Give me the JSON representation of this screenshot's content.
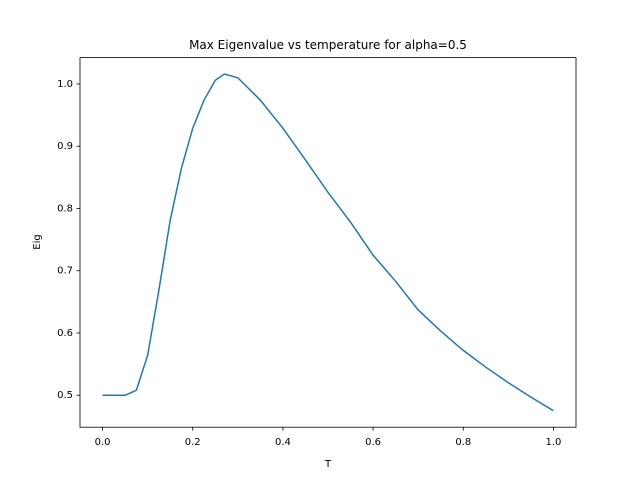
{
  "chart_data": {
    "type": "line",
    "title": "Max Eigenvalue vs temperature for alpha=0.5",
    "x_label": "T",
    "y_label": "Eig",
    "x": [
      0,
      0.025,
      0.05,
      0.06,
      0.075,
      0.1,
      0.125,
      0.15,
      0.175,
      0.2,
      0.225,
      0.25,
      0.27,
      0.3,
      0.35,
      0.4,
      0.45,
      0.5,
      0.55,
      0.6,
      0.65,
      0.7,
      0.75,
      0.8,
      0.85,
      0.9,
      0.95,
      1.0
    ],
    "series": [
      {
        "name": "Eig",
        "color": "#1f77b4",
        "values": [
          0.5,
          0.5,
          0.5,
          0.503,
          0.508,
          0.564,
          0.669,
          0.781,
          0.865,
          0.929,
          0.974,
          1.006,
          1.016,
          1.01,
          0.974,
          0.929,
          0.878,
          0.826,
          0.778,
          0.725,
          0.683,
          0.637,
          0.603,
          0.572,
          0.545,
          0.52,
          0.497,
          0.475
        ]
      }
    ],
    "xlim": [
      -0.05,
      1.05
    ],
    "xticks": [
      {
        "value": 0,
        "label": "0.0"
      },
      0.2,
      0.4,
      0.6,
      0.8,
      {
        "value": 1,
        "label": "1.0"
      }
    ],
    "ylim": [
      0.4486,
      1.0424
    ],
    "yticks": [
      0.5,
      0.6,
      0.7,
      0.8,
      0.9,
      {
        "value": 1,
        "label": "1.0"
      }
    ],
    "grid": false
  }
}
